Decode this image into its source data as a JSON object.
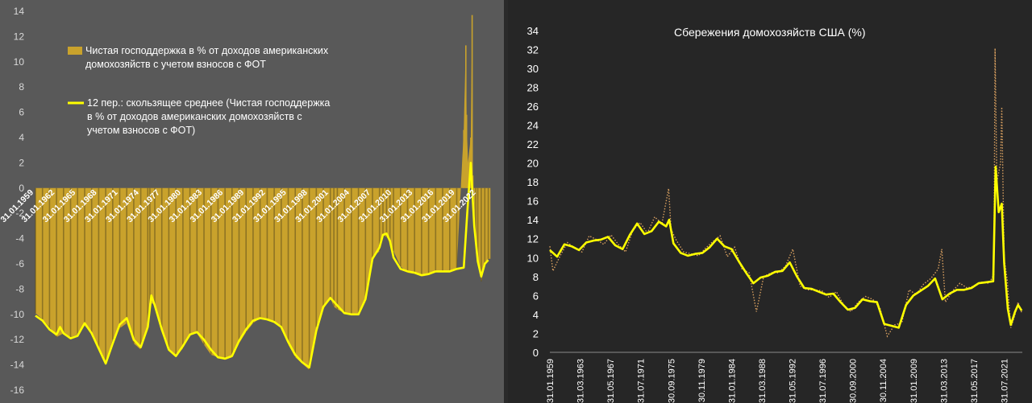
{
  "colors": {
    "left_background": "#595959",
    "right_background": "#262626",
    "bar_fill": "#c9a22c",
    "bar_dark": "#5d4e1e",
    "average_line": "#ffff00",
    "dotted_series": "#d9a060",
    "tick_text": "#d9d9d9",
    "white_text": "#ffffff"
  },
  "chart_data": [
    {
      "type": "bar",
      "title": "",
      "xlabel": "",
      "ylabel": "",
      "ylim": [
        -16,
        14
      ],
      "y_ticks": [
        -16,
        -14,
        -12,
        -10,
        -8,
        -6,
        -4,
        -2,
        0,
        2,
        4,
        6,
        8,
        10,
        12,
        14
      ],
      "x_tick_labels": [
        "31.01.1959",
        "31.01.1962",
        "31.01.1965",
        "31.01.1968",
        "31.01.1971",
        "31.01.1974",
        "31.01.1977",
        "31.01.1980",
        "31.01.1983",
        "31.01.1986",
        "31.01.1989",
        "31.01.1992",
        "31.01.1995",
        "31.01.1998",
        "31.01.2001",
        "31.01.2004",
        "31.01.2007",
        "31.01.2010",
        "31.01.2013",
        "31.01.2016",
        "31.01.2019",
        "31.01.2022"
      ],
      "legend": {
        "placement": "top-left",
        "entries": [
          "Чистая господдержка в % от доходов американских домохозяйств с учетом взносов с ФОТ",
          "12 пер.: скользящее среднее (Чистая господдержка в % от доходов американских домохозяйств с учетом взносов с ФОТ)"
        ]
      },
      "grid": false,
      "series": [
        {
          "name": "Чистая господдержка в % от доходов американских домохозяйств с учетом взносов с ФОТ",
          "type": "bar",
          "x": [
            1959.0,
            1960.0,
            1961.0,
            1962.0,
            1963.0,
            1964.0,
            1965.0,
            1966.0,
            1967.0,
            1968.0,
            1969.0,
            1970.0,
            1971.0,
            1972.0,
            1973.0,
            1974.0,
            1975.0,
            1975.3,
            1976.0,
            1977.0,
            1978.0,
            1979.0,
            1980.0,
            1981.0,
            1982.0,
            1983.0,
            1984.0,
            1985.0,
            1986.0,
            1987.0,
            1988.0,
            1989.0,
            1990.0,
            1991.0,
            1992.0,
            1993.0,
            1994.0,
            1995.0,
            1996.0,
            1997.0,
            1998.0,
            1999.0,
            2000.0,
            2001.0,
            2001.5,
            2002.0,
            2003.0,
            2004.0,
            2005.0,
            2006.0,
            2007.0,
            2008.0,
            2008.5,
            2009.0,
            2009.5,
            2010.0,
            2011.0,
            2012.0,
            2013.0,
            2014.0,
            2015.0,
            2016.0,
            2017.0,
            2018.0,
            2019.0,
            2020.0,
            2020.3,
            2020.4,
            2020.6,
            2021.0,
            2021.2,
            2021.3,
            2021.7,
            2022.0,
            2022.5,
            2023.0,
            2023.5
          ],
          "y": [
            -9.9,
            -10.4,
            -11.0,
            -11.8,
            -11.5,
            -11.8,
            -11.6,
            -10.9,
            -11.5,
            -12.8,
            -13.8,
            -12.0,
            -11.1,
            -10.7,
            -12.3,
            -12.8,
            -10.9,
            -9.1,
            -9.2,
            -11.0,
            -12.9,
            -13.3,
            -12.7,
            -11.6,
            -11.5,
            -12.4,
            -13.2,
            -13.4,
            -13.6,
            -13.4,
            -12.3,
            -11.4,
            -10.7,
            -10.3,
            -10.4,
            -10.7,
            -11.0,
            -12.4,
            -13.4,
            -13.9,
            -14.4,
            -11.0,
            -9.6,
            -8.7,
            -9.4,
            -9.6,
            -9.9,
            -10.0,
            -10.0,
            -9.0,
            -5.5,
            -5.0,
            -3.7,
            -3.9,
            -4.1,
            -5.0,
            -6.2,
            -6.7,
            -6.8,
            -7.0,
            -6.9,
            -6.6,
            -6.6,
            -6.6,
            -6.4,
            4.6,
            11.3,
            5.8,
            2.0,
            4.0,
            13.7,
            1.0,
            -3.8,
            -5.5,
            -7.4,
            -6.1,
            -5.6
          ]
        },
        {
          "name": "12 пер.: скользящее среднее (Чистая господдержка в % от доходов американских домохозяйств с учетом взносов с ФОТ)",
          "type": "line",
          "x": [
            1959.0,
            1960.0,
            1961.0,
            1962.0,
            1962.5,
            1963.0,
            1964.0,
            1965.0,
            1966.0,
            1967.0,
            1968.0,
            1969.0,
            1970.0,
            1971.0,
            1972.0,
            1973.0,
            1974.0,
            1975.0,
            1975.5,
            1976.0,
            1977.0,
            1978.0,
            1979.0,
            1980.0,
            1981.0,
            1982.0,
            1983.0,
            1984.0,
            1985.0,
            1986.0,
            1987.0,
            1988.0,
            1989.0,
            1990.0,
            1991.0,
            1992.0,
            1993.0,
            1994.0,
            1995.0,
            1996.0,
            1997.0,
            1998.0,
            1999.0,
            2000.0,
            2001.0,
            2002.0,
            2003.0,
            2004.0,
            2005.0,
            2006.0,
            2007.0,
            2008.0,
            2008.5,
            2009.0,
            2009.5,
            2010.0,
            2011.0,
            2012.0,
            2013.0,
            2014.0,
            2015.0,
            2016.0,
            2017.0,
            2018.0,
            2019.0,
            2020.0,
            2020.5,
            2021.0,
            2021.5,
            2022.0,
            2022.5,
            2023.0,
            2023.5
          ],
          "y": [
            -10.1,
            -10.5,
            -11.2,
            -11.6,
            -11.0,
            -11.5,
            -11.9,
            -11.7,
            -10.7,
            -11.5,
            -12.7,
            -13.9,
            -12.3,
            -10.8,
            -10.3,
            -12.0,
            -12.6,
            -11.0,
            -8.5,
            -9.3,
            -11.2,
            -12.8,
            -13.3,
            -12.5,
            -11.6,
            -11.4,
            -12.0,
            -12.8,
            -13.4,
            -13.5,
            -13.3,
            -12.1,
            -11.2,
            -10.5,
            -10.3,
            -10.4,
            -10.6,
            -11.0,
            -12.2,
            -13.2,
            -13.8,
            -14.2,
            -11.3,
            -9.4,
            -8.7,
            -9.3,
            -9.9,
            -10.0,
            -10.0,
            -8.8,
            -5.6,
            -4.7,
            -3.7,
            -3.6,
            -4.2,
            -5.5,
            -6.4,
            -6.6,
            -6.7,
            -6.9,
            -6.8,
            -6.6,
            -6.6,
            -6.6,
            -6.4,
            -6.3,
            -2.0,
            2.0,
            -3.0,
            -5.8,
            -7.0,
            -6.0,
            -5.7
          ]
        }
      ]
    },
    {
      "type": "line",
      "title": "Сбережения домохозяйств США  (%)",
      "xlabel": "",
      "ylabel": "",
      "ylim": [
        0,
        35
      ],
      "y_ticks": [
        0,
        2,
        4,
        6,
        8,
        10,
        12,
        14,
        16,
        18,
        20,
        22,
        24,
        26,
        28,
        30,
        32,
        34
      ],
      "x_tick_labels": [
        "31.01.1959",
        "31.03.1963",
        "31.05.1967",
        "31.07.1971",
        "30.09.1975",
        "30.11.1979",
        "31.01.1984",
        "31.03.1988",
        "31.05.1992",
        "31.07.1996",
        "30.09.2000",
        "30.11.2004",
        "31.01.2009",
        "31.03.2013",
        "31.05.2017",
        "31.07.2021"
      ],
      "x_range": [
        "31.01.1959",
        "31.12.2023"
      ],
      "legend": null,
      "grid": false,
      "series": [
        {
          "type": "line",
          "style": "dotted",
          "x": [
            "1959-01",
            "1959-06",
            "1960-06",
            "1961-06",
            "1962-06",
            "1963-06",
            "1964-06",
            "1965-06",
            "1966-06",
            "1967-06",
            "1968-06",
            "1969-06",
            "1970-06",
            "1971-06",
            "1972-06",
            "1973-06",
            "1974-06",
            "1975-05",
            "1975-09",
            "1976-06",
            "1977-06",
            "1978-06",
            "1979-06",
            "1980-06",
            "1981-06",
            "1982-06",
            "1983-06",
            "1984-06",
            "1985-06",
            "1986-06",
            "1987-06",
            "1988-06",
            "1989-06",
            "1990-06",
            "1991-06",
            "1992-06",
            "1993-06",
            "1994-06",
            "1995-06",
            "1996-06",
            "1997-06",
            "1998-06",
            "1999-06",
            "2000-06",
            "2001-06",
            "2002-06",
            "2003-06",
            "2004-06",
            "2005-06",
            "2006-06",
            "2007-06",
            "2008-06",
            "2009-06",
            "2010-06",
            "2011-06",
            "2012-06",
            "2012-12",
            "2013-06",
            "2014-06",
            "2015-06",
            "2016-06",
            "2017-06",
            "2018-06",
            "2019-06",
            "2020-02",
            "2020-04",
            "2020-07",
            "2021-01",
            "2021-03",
            "2021-07",
            "2021-12",
            "2022-06",
            "2023-01",
            "2023-06",
            "2023-12"
          ],
          "y": [
            11.2,
            8.6,
            10.2,
            11.6,
            11.0,
            10.6,
            12.3,
            11.9,
            11.4,
            12.4,
            11.4,
            10.6,
            12.9,
            13.7,
            12.6,
            14.3,
            13.6,
            17.3,
            13.0,
            11.8,
            10.6,
            10.4,
            10.2,
            11.0,
            11.7,
            12.3,
            10.1,
            11.1,
            8.8,
            8.4,
            4.3,
            8.0,
            8.4,
            8.4,
            9.1,
            10.9,
            7.0,
            6.6,
            6.6,
            6.5,
            5.8,
            6.4,
            5.0,
            4.3,
            5.3,
            5.9,
            5.6,
            4.7,
            1.7,
            2.9,
            3.1,
            6.6,
            6.1,
            7.2,
            7.8,
            8.8,
            10.9,
            5.3,
            6.5,
            7.3,
            6.8,
            7.0,
            7.4,
            7.3,
            8.2,
            32.1,
            18.0,
            20.0,
            25.9,
            9.9,
            7.7,
            2.6,
            4.0,
            5.3,
            4.2
          ]
        },
        {
          "type": "line",
          "style": "solid",
          "x": [
            "1959-01",
            "1960-01",
            "1961-01",
            "1962-01",
            "1963-01",
            "1964-01",
            "1965-01",
            "1966-01",
            "1967-01",
            "1968-01",
            "1969-01",
            "1970-01",
            "1971-01",
            "1972-01",
            "1973-01",
            "1974-01",
            "1975-01",
            "1975-06",
            "1976-01",
            "1977-01",
            "1978-01",
            "1979-01",
            "1980-01",
            "1981-01",
            "1982-01",
            "1983-01",
            "1984-01",
            "1985-01",
            "1986-01",
            "1987-01",
            "1988-01",
            "1989-01",
            "1990-01",
            "1991-01",
            "1992-01",
            "1993-01",
            "1994-01",
            "1995-01",
            "1996-01",
            "1997-01",
            "1998-01",
            "1999-01",
            "2000-01",
            "2001-01",
            "2002-01",
            "2003-01",
            "2004-01",
            "2005-01",
            "2006-01",
            "2007-01",
            "2008-01",
            "2009-01",
            "2010-01",
            "2011-01",
            "2012-01",
            "2013-01",
            "2014-01",
            "2015-01",
            "2016-01",
            "2017-01",
            "2018-01",
            "2019-01",
            "2020-01",
            "2020-05",
            "2020-10",
            "2021-03",
            "2021-07",
            "2022-01",
            "2022-06",
            "2023-01",
            "2023-06",
            "2023-12"
          ],
          "y": [
            10.8,
            10.1,
            11.4,
            11.2,
            10.8,
            11.6,
            11.8,
            11.9,
            12.2,
            11.3,
            10.9,
            12.4,
            13.6,
            12.5,
            12.8,
            13.8,
            13.3,
            14.0,
            11.5,
            10.5,
            10.2,
            10.4,
            10.5,
            11.1,
            12.0,
            11.2,
            10.9,
            9.6,
            8.4,
            7.3,
            7.9,
            8.1,
            8.5,
            8.6,
            9.5,
            8.0,
            6.8,
            6.7,
            6.4,
            6.1,
            6.2,
            5.3,
            4.5,
            4.7,
            5.6,
            5.4,
            5.3,
            3.0,
            2.8,
            2.6,
            5.0,
            6.0,
            6.5,
            7.0,
            7.8,
            5.6,
            6.2,
            6.6,
            6.6,
            6.8,
            7.3,
            7.4,
            7.5,
            19.6,
            14.8,
            15.7,
            9.4,
            4.6,
            2.9,
            4.3,
            5.0,
            4.4
          ]
        }
      ]
    }
  ]
}
